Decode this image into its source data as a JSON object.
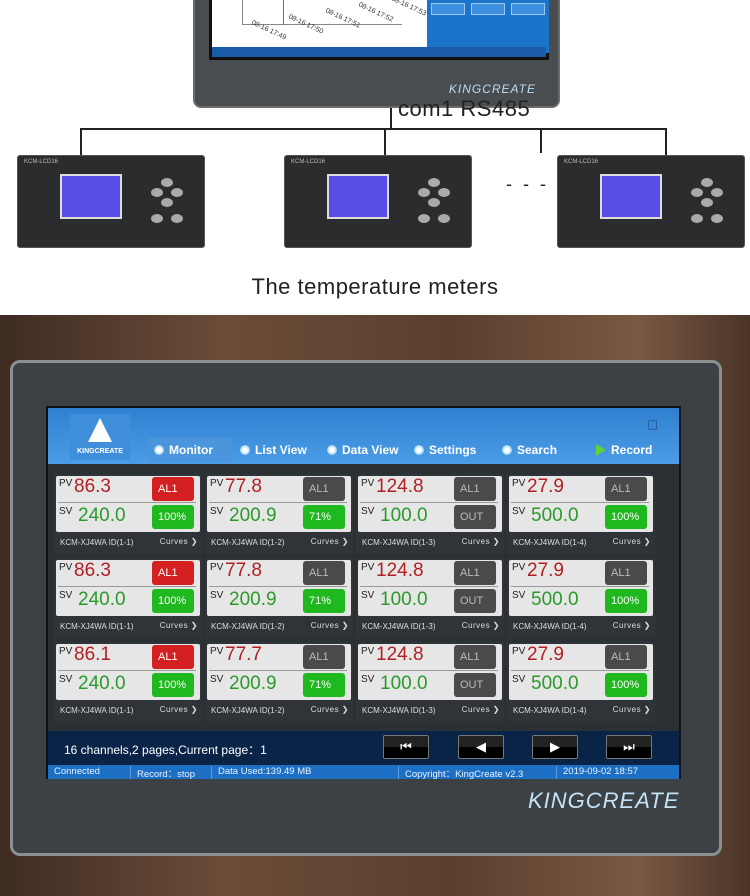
{
  "top": {
    "chart_ticks": [
      "08-16 17:49",
      "08-16 17:50",
      "08-16 17:51",
      "08-16 17:52",
      "08-16 17:53"
    ],
    "monitor_brand": "KINGCREATE",
    "connection_label": "com1 RS485",
    "meters": [
      {
        "model": "KCM-LCD16"
      },
      {
        "model": "KCM-LCD16"
      },
      {
        "model": "KCM-LCD16"
      }
    ],
    "dash": "- - -",
    "caption": "The temperature meters"
  },
  "screen": {
    "logo": "KINGCREATE",
    "tabs": [
      {
        "label": "Monitor",
        "active": true
      },
      {
        "label": "List View"
      },
      {
        "label": "Data View"
      },
      {
        "label": "Settings"
      },
      {
        "label": "Search"
      },
      {
        "label": "Record"
      }
    ],
    "pv_label": "PV",
    "sv_label": "SV",
    "curves_label": "Curves ❯",
    "colors": {
      "pv": "#b01f24",
      "sv": "#2a9a2a",
      "alarm_on": "#d42020",
      "alarm_off": "#4a4a4a",
      "out_on": "#1fb81f"
    },
    "cards": [
      {
        "pv": "86.3",
        "sv": "240.0",
        "alarm": "AL1",
        "alarm_on": true,
        "out": "100%",
        "out_on": true,
        "id": "KCM-XJ4WA ID(1-1)"
      },
      {
        "pv": "77.8",
        "sv": "200.9",
        "alarm": "AL1",
        "alarm_on": false,
        "out": "71%",
        "out_on": true,
        "id": "KCM-XJ4WA ID(1-2)"
      },
      {
        "pv": "124.8",
        "sv": "100.0",
        "alarm": "AL1",
        "alarm_on": false,
        "out": "OUT",
        "out_on": false,
        "id": "KCM-XJ4WA ID(1-3)"
      },
      {
        "pv": "27.9",
        "sv": "500.0",
        "alarm": "AL1",
        "alarm_on": false,
        "out": "100%",
        "out_on": true,
        "id": "KCM-XJ4WA ID(1-4)"
      },
      {
        "pv": "86.3",
        "sv": "240.0",
        "alarm": "AL1",
        "alarm_on": true,
        "out": "100%",
        "out_on": true,
        "id": "KCM-XJ4WA ID(1-1)"
      },
      {
        "pv": "77.8",
        "sv": "200.9",
        "alarm": "AL1",
        "alarm_on": false,
        "out": "71%",
        "out_on": true,
        "id": "KCM-XJ4WA ID(1-2)"
      },
      {
        "pv": "124.8",
        "sv": "100.0",
        "alarm": "AL1",
        "alarm_on": false,
        "out": "OUT",
        "out_on": false,
        "id": "KCM-XJ4WA ID(1-3)"
      },
      {
        "pv": "27.9",
        "sv": "500.0",
        "alarm": "AL1",
        "alarm_on": false,
        "out": "100%",
        "out_on": true,
        "id": "KCM-XJ4WA ID(1-4)"
      },
      {
        "pv": "86.1",
        "sv": "240.0",
        "alarm": "AL1",
        "alarm_on": true,
        "out": "100%",
        "out_on": true,
        "id": "KCM-XJ4WA ID(1-1)"
      },
      {
        "pv": "77.7",
        "sv": "200.9",
        "alarm": "AL1",
        "alarm_on": false,
        "out": "71%",
        "out_on": true,
        "id": "KCM-XJ4WA ID(1-2)"
      },
      {
        "pv": "124.8",
        "sv": "100.0",
        "alarm": "AL1",
        "alarm_on": false,
        "out": "OUT",
        "out_on": false,
        "id": "KCM-XJ4WA ID(1-3)"
      },
      {
        "pv": "27.9",
        "sv": "500.0",
        "alarm": "AL1",
        "alarm_on": false,
        "out": "100%",
        "out_on": true,
        "id": "KCM-XJ4WA ID(1-4)"
      }
    ],
    "page_info": "16 channels,2 pages,Current page：1",
    "nav_buttons": [
      {
        "name": "first-page",
        "glyph": "⏮"
      },
      {
        "name": "prev-page",
        "glyph": "◀"
      },
      {
        "name": "next-page",
        "glyph": "▶"
      },
      {
        "name": "last-page",
        "glyph": "⏭"
      }
    ],
    "status": {
      "connection": "Connected",
      "record": "Record：stop",
      "data_used": "Data Used:139.49 MB",
      "copyright": "Copyright：KingCreate v2.3",
      "datetime": "2019-09-02 18:57"
    }
  },
  "brand": "KINGCREATE"
}
